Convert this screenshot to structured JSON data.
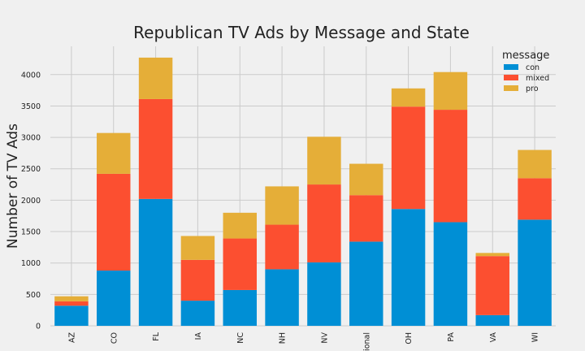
{
  "chart_data": {
    "type": "bar",
    "stacked": true,
    "title": "Republican TV Ads by Message and State",
    "xlabel": "",
    "ylabel": "Number of TV Ads",
    "categories": [
      "AZ",
      "CO",
      "FL",
      "IA",
      "NC",
      "NH",
      "NV",
      "National",
      "OH",
      "PA",
      "VA",
      "WI"
    ],
    "series": [
      {
        "name": "con",
        "color": "#008fd5",
        "values": [
          320,
          880,
          2020,
          400,
          570,
          900,
          1010,
          1340,
          1860,
          1650,
          170,
          1690
        ]
      },
      {
        "name": "mixed",
        "color": "#fc4f30",
        "values": [
          70,
          1540,
          1590,
          650,
          820,
          710,
          1240,
          740,
          1630,
          1790,
          940,
          660
        ]
      },
      {
        "name": "pro",
        "color": "#e5ae38",
        "values": [
          80,
          650,
          660,
          380,
          410,
          610,
          760,
          500,
          290,
          600,
          50,
          450
        ]
      }
    ],
    "ylim": [
      0,
      4450
    ],
    "yticks": [
      0,
      500,
      1000,
      1500,
      2000,
      2500,
      3000,
      3500,
      4000
    ],
    "grid": true,
    "legend": {
      "title": "message",
      "placement": "top-right"
    }
  }
}
